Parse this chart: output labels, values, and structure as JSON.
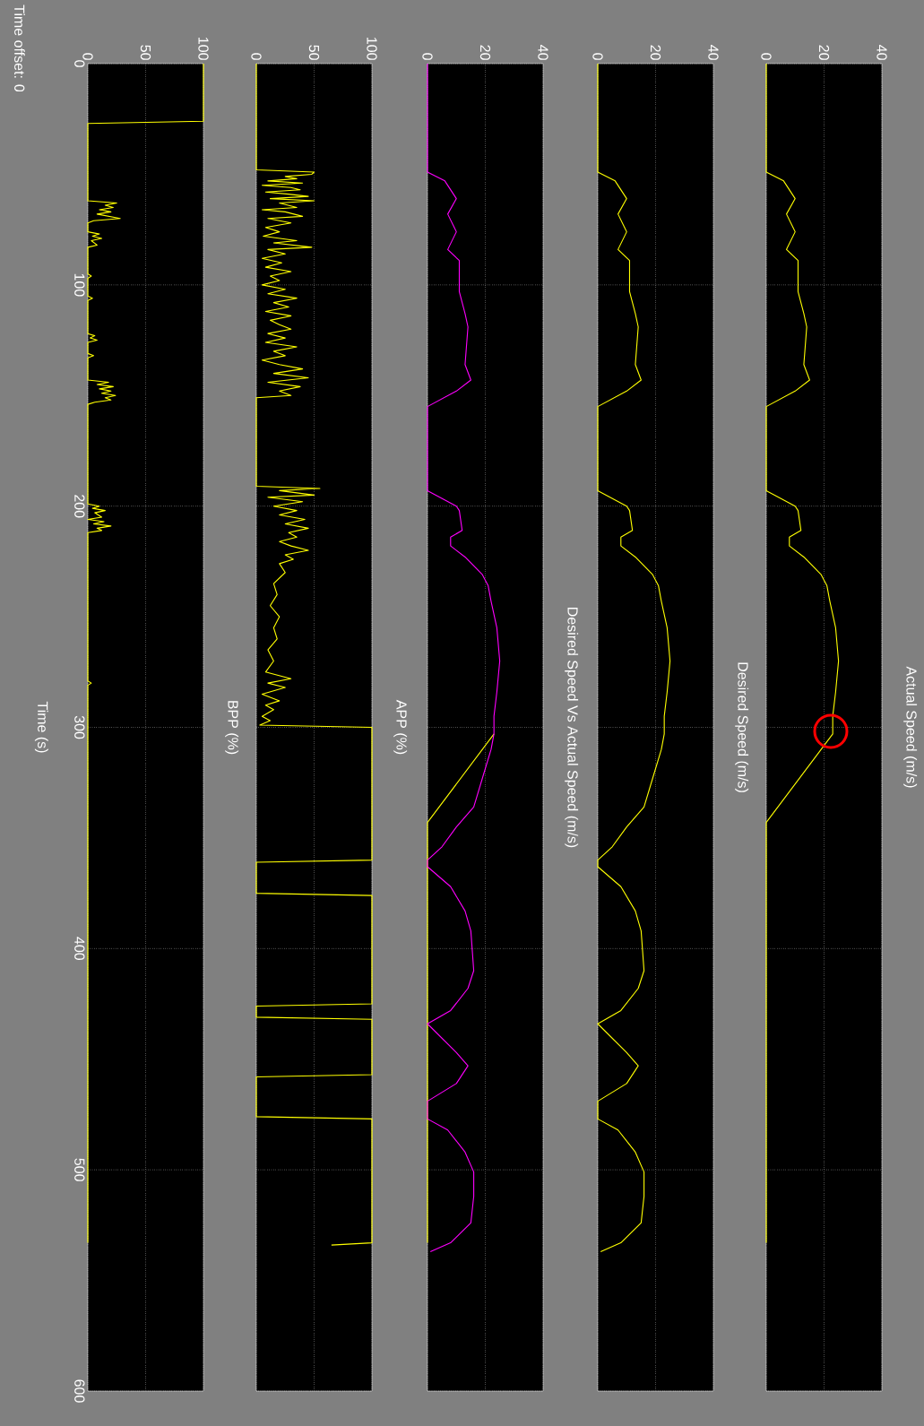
{
  "chart_data": [
    {
      "type": "line",
      "annotations": [
        "Actual Speed (m/s)"
      ],
      "x": [
        0,
        0,
        6,
        10,
        7,
        10,
        7,
        11,
        11,
        13,
        14,
        13,
        15,
        10,
        0,
        0,
        10,
        11,
        12,
        8,
        8,
        13,
        19,
        21,
        22,
        24,
        25,
        24,
        23,
        23,
        0,
        0
      ],
      "values": [
        0,
        49,
        53,
        61,
        68,
        76,
        84,
        89,
        103,
        113,
        119,
        136,
        143,
        148,
        155,
        193,
        200,
        202,
        211,
        214,
        218,
        223,
        231,
        236,
        243,
        255,
        270,
        284,
        295,
        303,
        343,
        533
      ],
      "color": "#ffff00",
      "xlim": [
        0,
        40
      ],
      "xticks": [
        0,
        20,
        40
      ],
      "ylim": [
        600,
        0
      ],
      "yticks": [
        0,
        100,
        200,
        300,
        400,
        500,
        600
      ],
      "grid": true,
      "tick_labels": "x"
    },
    {
      "type": "line",
      "annotations": [
        "Desired Speed (m/s)"
      ],
      "x": [
        0,
        0,
        6,
        10,
        7,
        10,
        7,
        11,
        11,
        13,
        14,
        13,
        15,
        10,
        0,
        0,
        10,
        11,
        12,
        8,
        8,
        13,
        19,
        21,
        22,
        24,
        25,
        24,
        23,
        23,
        22,
        19,
        16,
        10,
        5,
        0,
        0,
        8,
        13,
        15,
        16,
        14,
        8,
        0,
        10,
        14,
        10,
        0,
        0,
        7,
        13,
        16,
        16,
        15,
        8,
        1
      ],
      "values": [
        0,
        49,
        53,
        61,
        68,
        76,
        84,
        89,
        103,
        113,
        119,
        136,
        143,
        148,
        155,
        193,
        200,
        202,
        211,
        214,
        218,
        223,
        231,
        236,
        243,
        255,
        270,
        284,
        295,
        303,
        310,
        323,
        336,
        345,
        354,
        360,
        363,
        372,
        383,
        392,
        410,
        418,
        428,
        434,
        447,
        453,
        461,
        469,
        477,
        482,
        492,
        501,
        512,
        524,
        533,
        537
      ],
      "color": "#ffff00",
      "xlim": [
        0,
        40
      ],
      "xticks": [
        0,
        20,
        40
      ],
      "ylim": [
        600,
        0
      ],
      "yticks": [
        0,
        100,
        200,
        300,
        400,
        500,
        600
      ],
      "grid": true,
      "tick_labels": "x"
    },
    {
      "type": "line",
      "annotations": [
        "Desired Speed Vs Actual Speed (m/s)"
      ],
      "series": [
        {
          "color": "#ffff00",
          "x": [
            null,
            null,
            null,
            null,
            null,
            null,
            null,
            null,
            null,
            null,
            null,
            null,
            null,
            null,
            null,
            null,
            null,
            null,
            null,
            null,
            null,
            null,
            null,
            null,
            null,
            null,
            null,
            null,
            null,
            23,
            0,
            0
          ],
          "values": [
            null,
            null,
            null,
            null,
            null,
            null,
            null,
            null,
            null,
            null,
            null,
            null,
            null,
            null,
            null,
            null,
            null,
            null,
            null,
            null,
            null,
            null,
            null,
            null,
            null,
            null,
            null,
            null,
            null,
            303,
            343,
            533
          ]
        },
        {
          "color": "#ff00ff",
          "x": [
            0,
            0,
            6,
            10,
            7,
            10,
            7,
            11,
            11,
            13,
            14,
            13,
            15,
            10,
            0,
            0,
            10,
            11,
            12,
            8,
            8,
            13,
            19,
            21,
            22,
            24,
            25,
            24,
            23,
            23,
            22,
            19,
            16,
            10,
            5,
            0,
            0,
            8,
            13,
            15,
            16,
            14,
            8,
            0,
            10,
            14,
            10,
            0,
            0,
            7,
            13,
            16,
            16,
            15,
            8,
            1
          ],
          "values": [
            0,
            49,
            53,
            61,
            68,
            76,
            84,
            89,
            103,
            113,
            119,
            136,
            143,
            148,
            155,
            193,
            200,
            202,
            211,
            214,
            218,
            223,
            231,
            236,
            243,
            255,
            270,
            284,
            295,
            303,
            310,
            323,
            336,
            345,
            354,
            360,
            363,
            372,
            383,
            392,
            410,
            418,
            428,
            434,
            447,
            453,
            461,
            469,
            477,
            482,
            492,
            501,
            512,
            524,
            533,
            537
          ]
        }
      ],
      "xlim": [
        0,
        40
      ],
      "xticks": [
        0,
        20,
        40
      ],
      "ylim": [
        600,
        0
      ],
      "yticks": [
        0,
        100,
        200,
        300,
        400,
        500,
        600
      ],
      "grid": true,
      "tick_labels": "x"
    },
    {
      "type": "line",
      "annotations": [
        "APP (%)"
      ],
      "x": [
        0,
        0,
        50,
        48,
        25,
        35,
        10,
        40,
        5,
        30,
        38,
        8,
        28,
        45,
        12,
        50,
        20,
        35,
        5,
        25,
        40,
        10,
        30,
        8,
        20,
        6,
        35,
        15,
        48,
        10,
        25,
        5,
        22,
        8,
        30,
        12,
        20,
        5,
        25,
        10,
        35,
        15,
        28,
        8,
        30,
        12,
        20,
        30,
        10,
        25,
        8,
        35,
        15,
        25,
        5,
        20,
        40,
        15,
        45,
        10,
        38,
        20,
        30,
        0,
        0,
        55,
        20,
        50,
        10,
        40,
        15,
        35,
        20,
        42,
        25,
        45,
        28,
        35,
        20,
        30,
        45,
        25,
        32,
        20,
        25,
        15,
        18,
        12,
        20,
        15,
        18,
        10,
        15,
        8,
        30,
        10,
        25,
        5,
        20,
        8,
        15,
        5,
        12,
        3,
        100,
        100,
        0,
        0,
        100,
        100,
        0,
        0,
        100,
        100,
        0,
        0,
        100,
        100,
        65
      ],
      "values": [
        0,
        48,
        49,
        50,
        51,
        52,
        53,
        54,
        55,
        56,
        57,
        58,
        59,
        60,
        61,
        62,
        63,
        65,
        66,
        67,
        69,
        70,
        72,
        74,
        76,
        78,
        80,
        81,
        83,
        84,
        86,
        88,
        90,
        92,
        94,
        96,
        98,
        100,
        102,
        104,
        106,
        108,
        110,
        112,
        114,
        116,
        118,
        120,
        122,
        124,
        126,
        128,
        130,
        132,
        134,
        136,
        138,
        140,
        142,
        144,
        146,
        148,
        150,
        151,
        191,
        192,
        193,
        195,
        196,
        198,
        200,
        202,
        204,
        206,
        208,
        210,
        212,
        214,
        216,
        218,
        220,
        222,
        224,
        226,
        230,
        235,
        240,
        245,
        250,
        255,
        260,
        265,
        270,
        275,
        278,
        280,
        282,
        285,
        288,
        290,
        292,
        295,
        297,
        299,
        300,
        360,
        361,
        375,
        376,
        425,
        426,
        431,
        432,
        457,
        458,
        476,
        477,
        533,
        534
      ],
      "color": "#ffff00",
      "xlim": [
        0,
        100
      ],
      "xticks": [
        0,
        50,
        100
      ],
      "ylim": [
        600,
        0
      ],
      "yticks": [
        0,
        100,
        200,
        300,
        400,
        500,
        600
      ],
      "grid": true,
      "tick_labels": "x"
    },
    {
      "type": "line",
      "ylabel": "Time (s)",
      "annotations": [
        "BPP (%)",
        "Time offset: 0"
      ],
      "x": [
        100,
        100,
        0,
        0,
        25,
        15,
        22,
        10,
        20,
        8,
        28,
        5,
        0,
        0,
        10,
        4,
        12,
        3,
        8,
        0,
        0,
        3,
        0,
        0,
        4,
        0,
        0,
        6,
        2,
        8,
        0,
        0,
        5,
        0,
        0,
        18,
        8,
        22,
        10,
        20,
        12,
        24,
        15,
        20,
        6,
        0,
        0,
        10,
        4,
        15,
        6,
        12,
        0,
        14,
        5,
        20,
        8,
        12,
        0,
        0,
        3,
        0,
        0
      ],
      "values": [
        0,
        26,
        27,
        62,
        63,
        64,
        65,
        66,
        67,
        68,
        70,
        71,
        72,
        76,
        77,
        78,
        79,
        80,
        82,
        83,
        95,
        96,
        97,
        105,
        106,
        107,
        122,
        123,
        124,
        125,
        126,
        131,
        132,
        133,
        143,
        144,
        145,
        146,
        147,
        148,
        149,
        150,
        151,
        152,
        153,
        154,
        199,
        200,
        201,
        202,
        203,
        205,
        206,
        207,
        208,
        209,
        210,
        211,
        212,
        279,
        280,
        281,
        533
      ],
      "color": "#ffff00",
      "xlim": [
        0,
        100
      ],
      "xticks": [
        0,
        50,
        100
      ],
      "ylim": [
        600,
        0
      ],
      "yticks": [
        0,
        100,
        200,
        300,
        400,
        500,
        600
      ],
      "grid": true
    }
  ]
}
